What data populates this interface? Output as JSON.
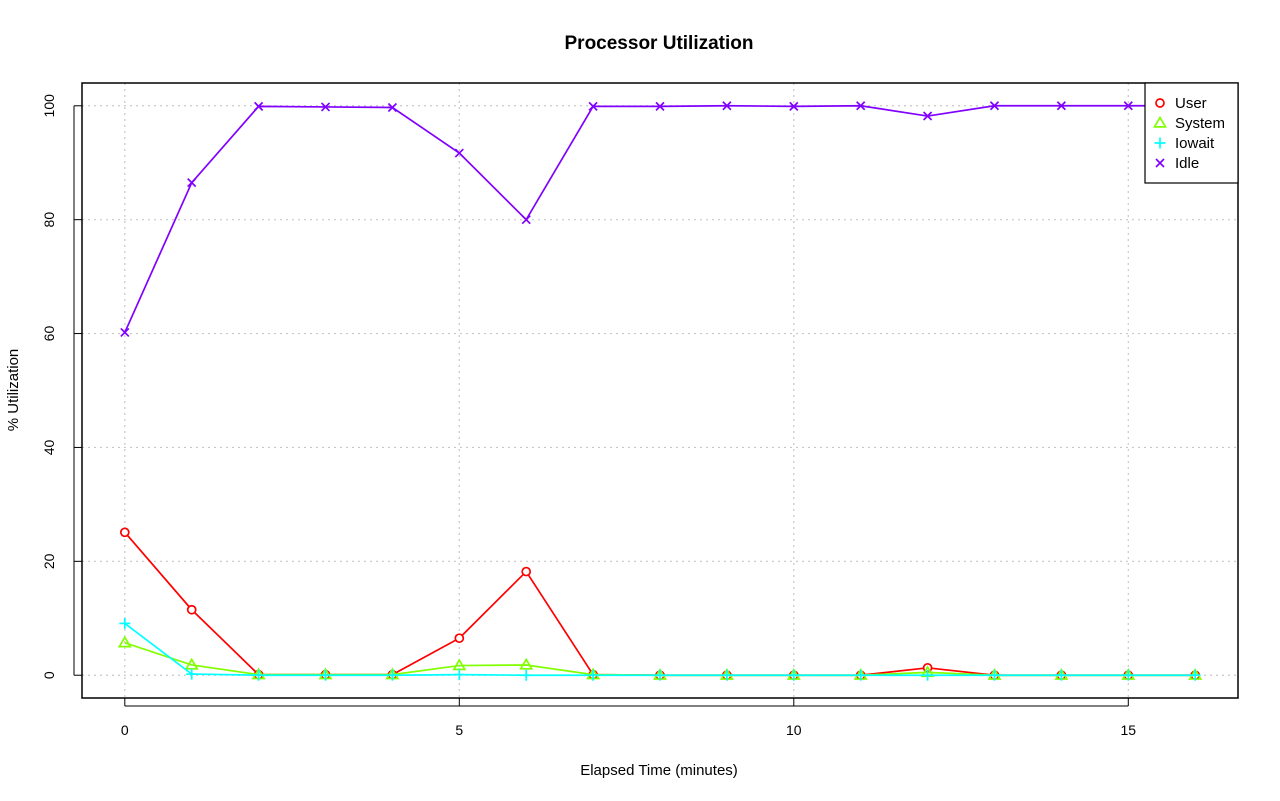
{
  "chart_data": {
    "type": "line",
    "title": "Processor Utilization",
    "xlabel": "Elapsed Time (minutes)",
    "ylabel": "% Utilization",
    "xlim": [
      -0.64,
      16.64
    ],
    "ylim": [
      -4,
      104
    ],
    "xticks": [
      0,
      5,
      10,
      15
    ],
    "yticks": [
      0,
      20,
      40,
      60,
      80,
      100
    ],
    "grid": true,
    "legend_position": "top-right",
    "x": [
      0,
      1,
      2,
      3,
      4,
      5,
      6,
      7,
      8,
      9,
      10,
      11,
      12,
      13,
      14,
      15,
      16
    ],
    "series": [
      {
        "name": "User",
        "color": "#ff0000",
        "marker": "circle",
        "values": [
          25.1,
          11.5,
          0.1,
          0.1,
          0.1,
          6.5,
          18.2,
          0.1,
          0,
          0,
          0,
          0,
          1.3,
          0,
          0,
          0,
          0
        ]
      },
      {
        "name": "System",
        "color": "#80ff00",
        "marker": "triangle",
        "values": [
          5.7,
          1.8,
          0.1,
          0.1,
          0.1,
          1.7,
          1.8,
          0.1,
          0,
          0,
          0,
          0,
          0.5,
          0,
          0,
          0,
          0
        ]
      },
      {
        "name": "Iowait",
        "color": "#00ffff",
        "marker": "plus",
        "values": [
          9.1,
          0.2,
          0,
          0,
          0,
          0.1,
          0,
          0,
          0,
          0,
          0,
          0,
          0,
          0,
          0,
          0,
          0
        ]
      },
      {
        "name": "Idle",
        "color": "#8000ff",
        "marker": "cross",
        "values": [
          60.2,
          86.5,
          99.9,
          99.8,
          99.7,
          91.7,
          80.0,
          99.9,
          99.9,
          100,
          99.9,
          100,
          98.2,
          100,
          100,
          100,
          100
        ]
      }
    ]
  }
}
